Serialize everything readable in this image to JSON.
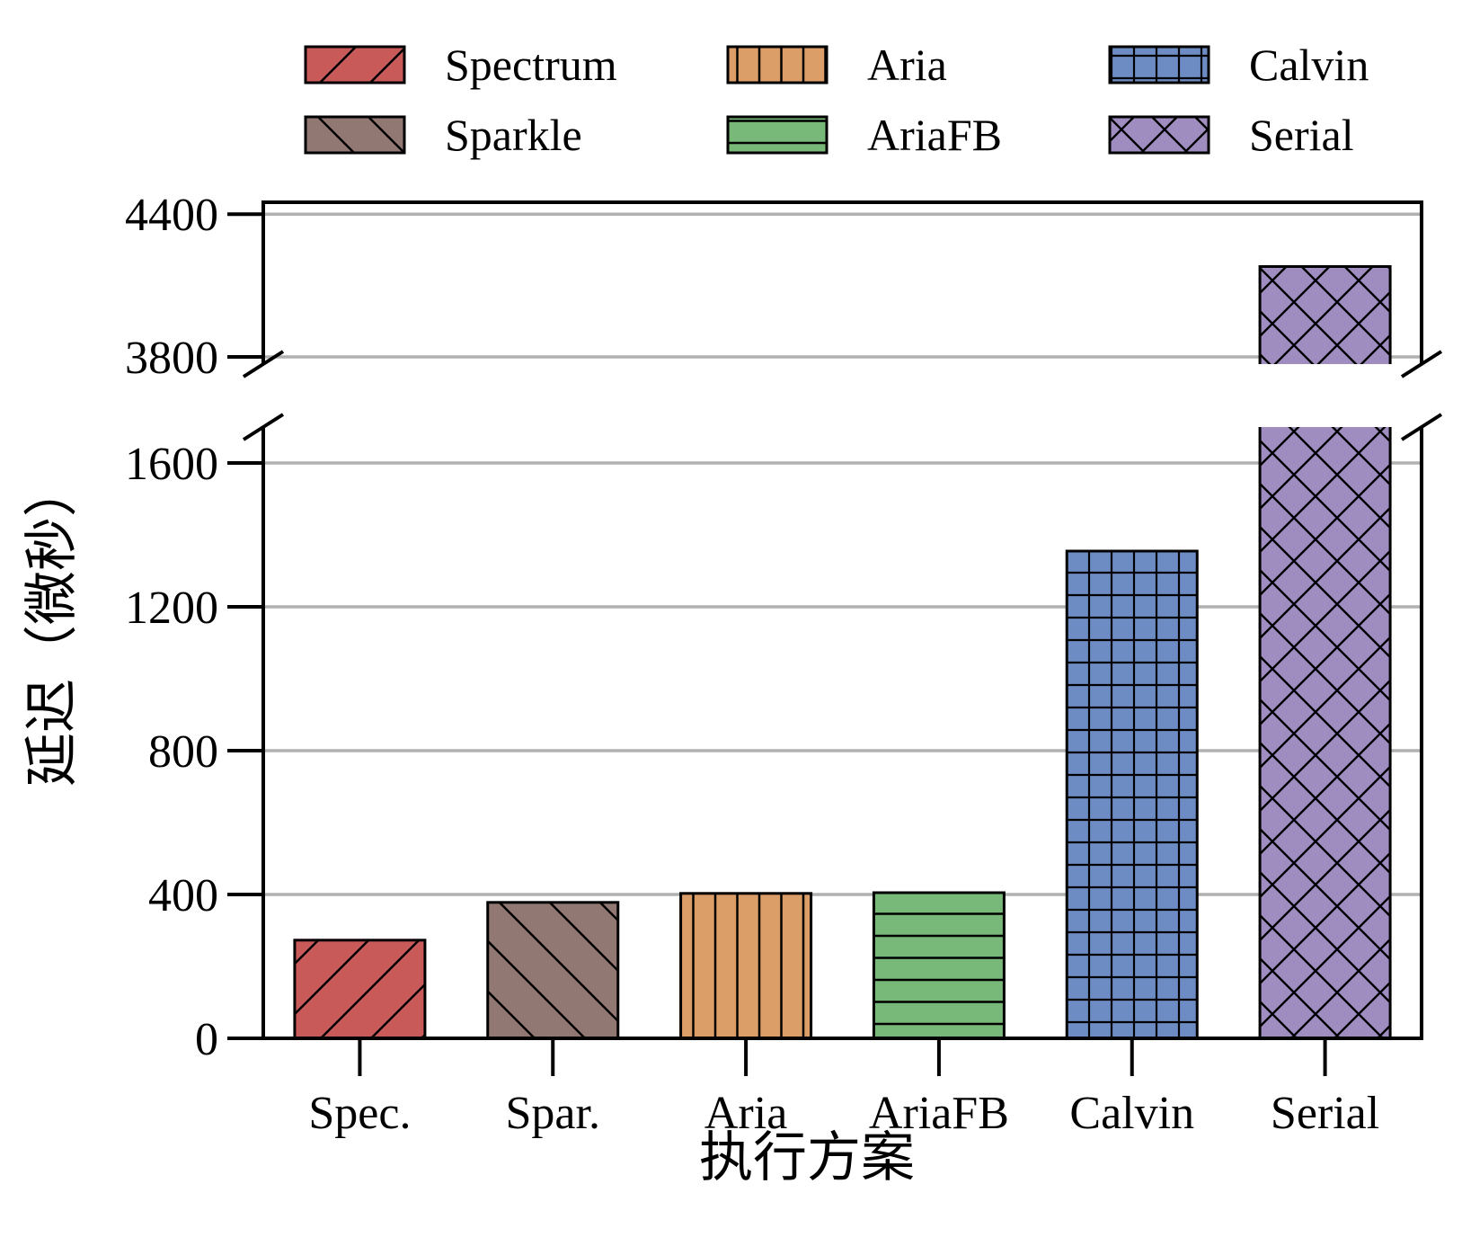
{
  "chart_data": {
    "type": "bar",
    "categories": [
      "Spec.",
      "Spar.",
      "Aria",
      "AriaFB",
      "Calvin",
      "Serial"
    ],
    "values": [
      273,
      378,
      403,
      405,
      1355,
      4180
    ],
    "xlabel": "执行方案",
    "ylabel": "延迟（微秒）",
    "broken_axis": {
      "lower_range": [
        0,
        1700
      ],
      "upper_range": [
        3770,
        4450
      ]
    },
    "y_ticks_lower": [
      "0",
      "400",
      "800",
      "1200",
      "1600"
    ],
    "y_ticks_upper": [
      "3800",
      "4400"
    ],
    "grid": "horizontal",
    "legend": {
      "placement": "top",
      "entries": [
        "Spectrum",
        "Aria",
        "Calvin",
        "Sparkle",
        "AriaFB",
        "Serial"
      ]
    },
    "colors": {
      "Spec.": "#c85a5a",
      "Spar.": "#917873",
      "Aria": "#dc9e68",
      "AriaFB": "#78b878",
      "Calvin": "#6e8cc4",
      "Serial": "#9f8dc0",
      "grid": "#b0b0b0"
    },
    "patterns": {
      "Spec.": "diagonal-forward",
      "Spar.": "diagonal-back",
      "Aria": "vertical",
      "AriaFB": "horizontal",
      "Calvin": "grid",
      "Serial": "crosshatch"
    }
  }
}
